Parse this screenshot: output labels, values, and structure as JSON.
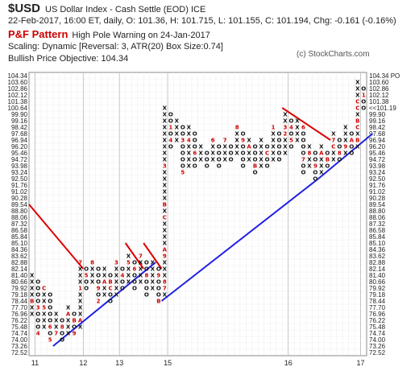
{
  "header": {
    "symbol": "$USD",
    "symbol_name": "US Dollar Index - Cash Settle (EOD)  ICE",
    "quote_line": "22-Feb-2017, 16:00 ET, daily, O: 101.36, H: 101.715, L: 101.155, C: 101.194, Chg: -0.161 (-0.16%)",
    "pattern_title": "P&F Pattern",
    "pattern_note": "High Pole Warning on 24-Jan-2017",
    "scaling": "Scaling: Dynamic [Reversal: 3, ATR(20) Box Size:0.74]",
    "objective": "Bullish Price Objective: 104.34",
    "copyright": "(c) StockCharts.com"
  },
  "chart_data": {
    "type": "point-and-figure",
    "box_size": 0.74,
    "reversal": 3,
    "y_levels": [
      72.52,
      73.26,
      74.0,
      74.74,
      75.48,
      76.22,
      76.96,
      77.7,
      78.44,
      79.18,
      79.92,
      80.66,
      81.4,
      82.14,
      82.88,
      83.62,
      84.36,
      85.1,
      85.84,
      86.58,
      87.32,
      88.06,
      88.8,
      89.54,
      90.28,
      91.02,
      91.76,
      92.5,
      93.24,
      93.98,
      94.72,
      95.46,
      96.2,
      96.94,
      97.68,
      98.42,
      99.16,
      99.9,
      100.64,
      101.38,
      102.12,
      102.86,
      103.6,
      104.34
    ],
    "y_tick_labels_right": [
      "72.52",
      "73.26",
      "74.00",
      "74.74",
      "75.48",
      "76.22",
      "76.96",
      "77.70",
      "78.44",
      "79.18",
      "79.92",
      "80.66",
      "81.40",
      "82.14",
      "82.88",
      "83.62",
      "84.36",
      "85.10",
      "85.84",
      "86.58",
      "87.32",
      "88.06",
      "88.80",
      "89.54",
      "90.28",
      "91.02",
      "91.76",
      "92.50",
      "93.24",
      "93.98",
      "94.72",
      "95.46",
      "96.20",
      "96.94",
      "97.68",
      "98.42",
      "99.16",
      "99.90",
      "<<101.19",
      "101.38",
      "102.12",
      "102.86",
      "103.60",
      "104.34 PO"
    ],
    "y_tick_labels_left": [
      "72.52",
      "73.26",
      "74.00",
      "74.74",
      "75.48",
      "76.22",
      "76.96",
      "77.70",
      "78.44",
      "79.18",
      "79.92",
      "80.66",
      "81.40",
      "82.14",
      "82.88",
      "83.62",
      "84.36",
      "85.10",
      "85.84",
      "86.58",
      "87.32",
      "88.06",
      "88.80",
      "89.54",
      "90.28",
      "91.02",
      "91.76",
      "92.50",
      "93.24",
      "93.98",
      "94.72",
      "95.46",
      "96.20",
      "96.94",
      "97.68",
      "98.42",
      "99.16",
      "99.90",
      "100.64",
      "101.38",
      "102.12",
      "102.86",
      "103.60",
      "104.34"
    ],
    "highlight_levels": {
      "104.34": "#2a9d2a",
      "100.64": "#cc0000"
    },
    "x_labels": [
      {
        "col": 1,
        "label": "11"
      },
      {
        "col": 9,
        "label": "12"
      },
      {
        "col": 15,
        "label": "13"
      },
      {
        "col": 23,
        "label": "15"
      },
      {
        "col": 43,
        "label": "16"
      },
      {
        "col": 55,
        "label": "17"
      }
    ],
    "columns": [
      {
        "type": "X",
        "from": 76.96,
        "to": 81.4,
        "marks": {
          "78.44": "B"
        }
      },
      {
        "type": "O",
        "from": 80.66,
        "to": 74.74,
        "marks": {
          "77.70": "3",
          "74.74": "4"
        }
      },
      {
        "type": "X",
        "from": 75.48,
        "to": 79.92,
        "marks": {
          "77.70": "5",
          "79.92": "C"
        }
      },
      {
        "type": "O",
        "from": 79.18,
        "to": 74.0,
        "marks": {
          "75.48": "6",
          "74.00": "5"
        }
      },
      {
        "type": "X",
        "from": 74.74,
        "to": 76.96,
        "marks": {
          "74.74": "7"
        }
      },
      {
        "type": "O",
        "from": 76.22,
        "to": 74.0,
        "marks": {
          "75.48": "8"
        }
      },
      {
        "type": "X",
        "from": 74.74,
        "to": 77.7,
        "marks": {
          "76.96": "A"
        }
      },
      {
        "type": "O",
        "from": 76.96,
        "to": 74.74,
        "marks": {
          "76.22": "B",
          "74.74": "9"
        }
      },
      {
        "type": "X",
        "from": 75.48,
        "to": 82.88,
        "marks": {
          "76.22": "A",
          "79.92": "1",
          "82.88": "7"
        }
      },
      {
        "type": "O",
        "from": 82.14,
        "to": 79.92,
        "marks": {
          "81.40": "5"
        }
      },
      {
        "type": "X",
        "from": 80.66,
        "to": 82.88,
        "marks": {
          "82.88": "8"
        }
      },
      {
        "type": "O",
        "from": 82.14,
        "to": 78.44,
        "marks": {
          "79.92": "9",
          "78.44": "2"
        }
      },
      {
        "type": "X",
        "from": 79.18,
        "to": 82.14,
        "marks": {
          "80.66": "A"
        }
      },
      {
        "type": "O",
        "from": 81.4,
        "to": 78.44,
        "marks": {
          "80.66": "B",
          "79.92": "C"
        }
      },
      {
        "type": "X",
        "from": 79.18,
        "to": 82.88,
        "marks": {
          "82.88": "3"
        }
      },
      {
        "type": "O",
        "from": 82.14,
        "to": 79.92,
        "marks": {
          "81.40": "4"
        }
      },
      {
        "type": "X",
        "from": 80.66,
        "to": 83.62,
        "marks": {
          "82.88": "5"
        }
      },
      {
        "type": "O",
        "from": 82.88,
        "to": 79.92,
        "marks": {
          "82.14": "6"
        }
      },
      {
        "type": "X",
        "from": 80.66,
        "to": 83.62,
        "marks": {
          "83.62": "7"
        }
      },
      {
        "type": "O",
        "from": 82.88,
        "to": 79.18,
        "marks": {
          "81.40": "8"
        }
      },
      {
        "type": "X",
        "from": 79.92,
        "to": 82.88,
        "marks": {}
      },
      {
        "type": "O",
        "from": 82.14,
        "to": 78.44,
        "marks": {
          "81.40": "9",
          "78.44": "B"
        }
      },
      {
        "type": "X",
        "from": 79.18,
        "to": 100.64,
        "marks": {
          "79.92": "7",
          "80.66": "8",
          "83.62": "9",
          "84.36": "A",
          "88.06": "C",
          "89.54": "B",
          "93.98": "3"
        }
      },
      {
        "type": "O",
        "from": 99.9,
        "to": 96.2,
        "marks": {
          "98.42": "1",
          "96.94": "4"
        }
      },
      {
        "type": "X",
        "from": 96.94,
        "to": 99.16,
        "marks": {}
      },
      {
        "type": "O",
        "from": 98.42,
        "to": 93.24,
        "marks": {
          "96.94": "3",
          "93.24": "5"
        }
      },
      {
        "type": "X",
        "from": 93.98,
        "to": 98.42,
        "marks": {
          "96.94": "4"
        }
      },
      {
        "type": "O",
        "from": 97.68,
        "to": 93.98,
        "marks": {
          "95.46": "6"
        }
      },
      {
        "type": "X",
        "from": 94.72,
        "to": 96.2,
        "marks": {}
      },
      {
        "type": "O",
        "from": 95.46,
        "to": 93.98,
        "marks": {}
      },
      {
        "type": "X",
        "from": 94.72,
        "to": 96.94,
        "marks": {
          "96.94": "6"
        }
      },
      {
        "type": "O",
        "from": 96.2,
        "to": 93.98,
        "marks": {}
      },
      {
        "type": "X",
        "from": 94.72,
        "to": 96.94,
        "marks": {
          "96.94": "7"
        }
      },
      {
        "type": "O",
        "from": 96.2,
        "to": 94.72,
        "marks": {}
      },
      {
        "type": "X",
        "from": 95.46,
        "to": 98.42,
        "marks": {
          "98.42": "8"
        }
      },
      {
        "type": "O",
        "from": 97.68,
        "to": 93.98,
        "marks": {
          "96.94": "9"
        }
      },
      {
        "type": "X",
        "from": 94.72,
        "to": 96.94,
        "marks": {
          "96.20": "A"
        }
      },
      {
        "type": "O",
        "from": 96.2,
        "to": 93.24,
        "marks": {
          "93.98": "B"
        }
      },
      {
        "type": "X",
        "from": 93.98,
        "to": 96.94,
        "marks": {}
      },
      {
        "type": "O",
        "from": 96.2,
        "to": 93.98,
        "marks": {
          "95.46": "C"
        }
      },
      {
        "type": "X",
        "from": 94.72,
        "to": 98.42,
        "marks": {
          "98.42": "1"
        }
      },
      {
        "type": "O",
        "from": 97.68,
        "to": 94.72,
        "marks": {}
      },
      {
        "type": "X",
        "from": 95.46,
        "to": 99.9,
        "marks": {
          "97.68": "2",
          "98.42": "3"
        }
      },
      {
        "type": "O",
        "from": 99.16,
        "to": 96.2,
        "marks": {
          "98.42": "4",
          "96.94": "5"
        }
      },
      {
        "type": "X",
        "from": 96.94,
        "to": 99.16,
        "marks": {}
      },
      {
        "type": "O",
        "from": 98.42,
        "to": 93.24,
        "marks": {
          "98.42": "6",
          "94.72": "7"
        }
      },
      {
        "type": "X",
        "from": 93.98,
        "to": 96.2,
        "marks": {
          "95.46": "8"
        }
      },
      {
        "type": "O",
        "from": 95.46,
        "to": 92.5,
        "marks": {
          "93.98": "9"
        }
      },
      {
        "type": "X",
        "from": 93.24,
        "to": 96.2,
        "marks": {
          "95.46": "A"
        }
      },
      {
        "type": "O",
        "from": 95.46,
        "to": 93.98,
        "marks": {
          "94.72": "B"
        }
      },
      {
        "type": "X",
        "from": 94.72,
        "to": 97.68,
        "marks": {
          "96.20": "C",
          "96.94": "7"
        }
      },
      {
        "type": "O",
        "from": 96.94,
        "to": 94.72,
        "marks": {
          "95.46": "8"
        }
      },
      {
        "type": "X",
        "from": 95.46,
        "to": 98.42,
        "marks": {
          "96.20": "9"
        }
      },
      {
        "type": "O",
        "from": 97.68,
        "to": 95.46,
        "marks": {
          "96.94": "A"
        }
      },
      {
        "type": "X",
        "from": 96.2,
        "to": 103.6,
        "marks": {
          "96.94": "B",
          "98.42": "C",
          "99.16": "B",
          "100.64": "C",
          "101.38": "C"
        }
      },
      {
        "type": "O",
        "from": 102.86,
        "to": 100.64,
        "marks": {
          "102.12": "1"
        }
      }
    ],
    "trendlines": [
      {
        "color": "#dd0000",
        "from": [
          0,
          89.54
        ],
        "to": [
          9,
          82.14
        ]
      },
      {
        "color": "#dd0000",
        "from": [
          16,
          85.1
        ],
        "to": [
          19,
          82.14
        ]
      },
      {
        "color": "#dd0000",
        "from": [
          19,
          85.1
        ],
        "to": [
          22,
          82.14
        ]
      },
      {
        "color": "#dd0000",
        "from": [
          42,
          100.64
        ],
        "to": [
          50,
          96.94
        ]
      },
      {
        "color": "#1f1fe6",
        "from": [
          4,
          73.26
        ],
        "to": [
          21,
          82.88
        ]
      },
      {
        "color": "#1f1fe6",
        "from": [
          22,
          78.44
        ],
        "to": [
          48,
          92.5
        ]
      },
      {
        "color": "#1f1fe6",
        "from": [
          48,
          92.5
        ],
        "to": [
          57,
          97.68
        ]
      }
    ]
  }
}
